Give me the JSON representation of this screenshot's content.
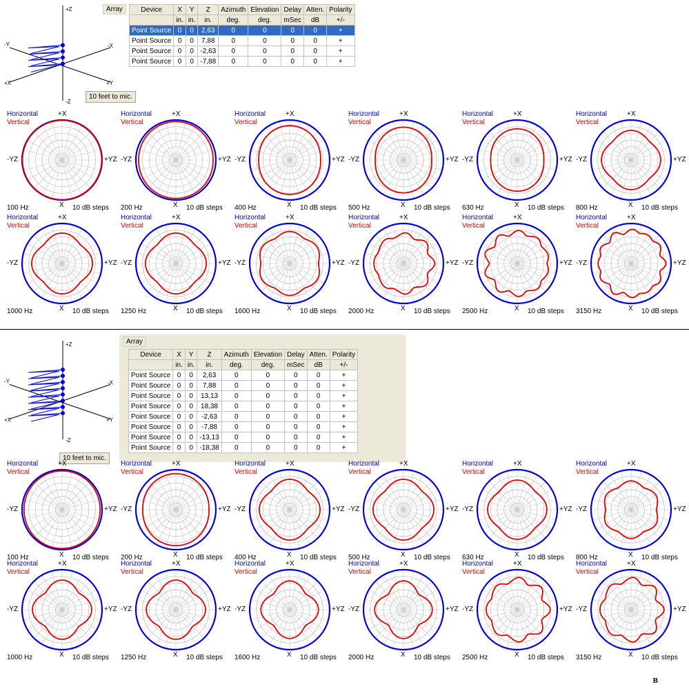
{
  "colors": {
    "horizontal": "#0000d8",
    "vertical": "#e00000",
    "selection": "#316ac5"
  },
  "sections": [
    {
      "array_label": "Array",
      "mic_label": "10 feet to mic.",
      "axes": {
        "pz": "+Z",
        "nz": "-Z",
        "py": "+Y",
        "ny": "-Y",
        "px": "+X",
        "nx": "-X"
      },
      "table": {
        "headers": [
          "Device",
          "X",
          "Y",
          "Z",
          "Azimuth",
          "Elevation",
          "Delay",
          "Atten.",
          "Polarity"
        ],
        "units": [
          "",
          "in.",
          "in.",
          "in.",
          "deg.",
          "deg.",
          "mSec",
          "dB",
          "+/-"
        ],
        "rows": [
          [
            "Point Source",
            "0",
            "0",
            "2,63",
            "0",
            "0",
            "0",
            "0",
            "+"
          ],
          [
            "Point Source",
            "0",
            "0",
            "7,88",
            "0",
            "0",
            "0",
            "0",
            "+"
          ],
          [
            "Point Source",
            "0",
            "0",
            "-2,63",
            "0",
            "0",
            "0",
            "0",
            "+"
          ],
          [
            "Point Source",
            "0",
            "0",
            "-7,88",
            "0",
            "0",
            "0",
            "0",
            "+"
          ]
        ],
        "selected_row": 0
      },
      "plots": [
        {
          "freq": "100 Hz",
          "ripple": 0.0,
          "lobes": 0,
          "k": 0.99
        },
        {
          "freq": "200 Hz",
          "ripple": 0.03,
          "lobes": 2,
          "k": 0.96
        },
        {
          "freq": "400 Hz",
          "ripple": 0.1,
          "lobes": 2,
          "k": 0.86
        },
        {
          "freq": "500 Hz",
          "ripple": 0.14,
          "lobes": 2,
          "k": 0.82
        },
        {
          "freq": "630 Hz",
          "ripple": 0.15,
          "lobes": 2,
          "k": 0.78
        },
        {
          "freq": "800 Hz",
          "ripple": 0.12,
          "lobes": 4,
          "k": 0.74
        },
        {
          "freq": "1000 Hz",
          "ripple": 0.14,
          "lobes": 4,
          "k": 0.76
        },
        {
          "freq": "1250 Hz",
          "ripple": 0.13,
          "lobes": 4,
          "k": 0.76
        },
        {
          "freq": "1600 Hz",
          "ripple": 0.1,
          "lobes": 6,
          "k": 0.8
        },
        {
          "freq": "2000 Hz",
          "ripple": 0.12,
          "lobes": 8,
          "k": 0.76
        },
        {
          "freq": "2500 Hz",
          "ripple": 0.12,
          "lobes": 10,
          "k": 0.82
        },
        {
          "freq": "3150 Hz",
          "ripple": 0.1,
          "lobes": 12,
          "k": 0.85
        }
      ]
    },
    {
      "array_label": "Array",
      "mic_label": "10 feet to mic.",
      "axes": {
        "pz": "+Z",
        "nz": "-Z",
        "py": "+Y",
        "ny": "-Y",
        "px": "+X",
        "nx": "-X"
      },
      "table": {
        "headers": [
          "Device",
          "X",
          "Y",
          "Z",
          "Azimuth",
          "Elevation",
          "Delay",
          "Atten.",
          "Polarity"
        ],
        "units": [
          "",
          "in.",
          "in.",
          "in.",
          "deg.",
          "deg.",
          "mSec",
          "dB",
          "+/-"
        ],
        "rows": [
          [
            "Point Source",
            "0",
            "0",
            "2,63",
            "0",
            "0",
            "0",
            "0",
            "+"
          ],
          [
            "Point Source",
            "0",
            "0",
            "7,88",
            "0",
            "0",
            "0",
            "0",
            "+"
          ],
          [
            "Point Source",
            "0",
            "0",
            "13,13",
            "0",
            "0",
            "0",
            "0",
            "+"
          ],
          [
            "Point Source",
            "0",
            "0",
            "18,38",
            "0",
            "0",
            "0",
            "0",
            "+"
          ],
          [
            "Point Source",
            "0",
            "0",
            "-2,63",
            "0",
            "0",
            "0",
            "0",
            "+"
          ],
          [
            "Point Source",
            "0",
            "0",
            "-7,88",
            "0",
            "0",
            "0",
            "0",
            "+"
          ],
          [
            "Point Source",
            "0",
            "0",
            "-13,13",
            "0",
            "0",
            "0",
            "0",
            "+"
          ],
          [
            "Point Source",
            "0",
            "0",
            "-18,38",
            "0",
            "0",
            "0",
            "0",
            "+"
          ]
        ],
        "selected_row": -1
      },
      "plots": [
        {
          "freq": "100 Hz",
          "ripple": 0.02,
          "lobes": 2,
          "k": 0.97
        },
        {
          "freq": "200 Hz",
          "ripple": 0.08,
          "lobes": 2,
          "k": 0.9
        },
        {
          "freq": "400 Hz",
          "ripple": 0.14,
          "lobes": 4,
          "k": 0.76
        },
        {
          "freq": "500 Hz",
          "ripple": 0.14,
          "lobes": 4,
          "k": 0.76
        },
        {
          "freq": "630 Hz",
          "ripple": 0.14,
          "lobes": 4,
          "k": 0.74
        },
        {
          "freq": "800 Hz",
          "ripple": 0.12,
          "lobes": 6,
          "k": 0.72
        },
        {
          "freq": "1000 Hz",
          "ripple": 0.2,
          "lobes": 4,
          "k": 0.74
        },
        {
          "freq": "1250 Hz",
          "ripple": 0.2,
          "lobes": 4,
          "k": 0.74
        },
        {
          "freq": "1600 Hz",
          "ripple": 0.22,
          "lobes": 4,
          "k": 0.72
        },
        {
          "freq": "2000 Hz",
          "ripple": 0.25,
          "lobes": 4,
          "k": 0.72
        },
        {
          "freq": "2500 Hz",
          "ripple": 0.15,
          "lobes": 8,
          "k": 0.8
        },
        {
          "freq": "3150 Hz",
          "ripple": 0.15,
          "lobes": 8,
          "k": 0.8
        }
      ]
    }
  ],
  "plot_labels": {
    "horizontal": "Horizontal",
    "vertical": "Vertical",
    "top": "+X",
    "bottom": "X",
    "left": "-YZ",
    "right": "+YZ",
    "steps": "10 dB steps"
  },
  "footer": "B"
}
